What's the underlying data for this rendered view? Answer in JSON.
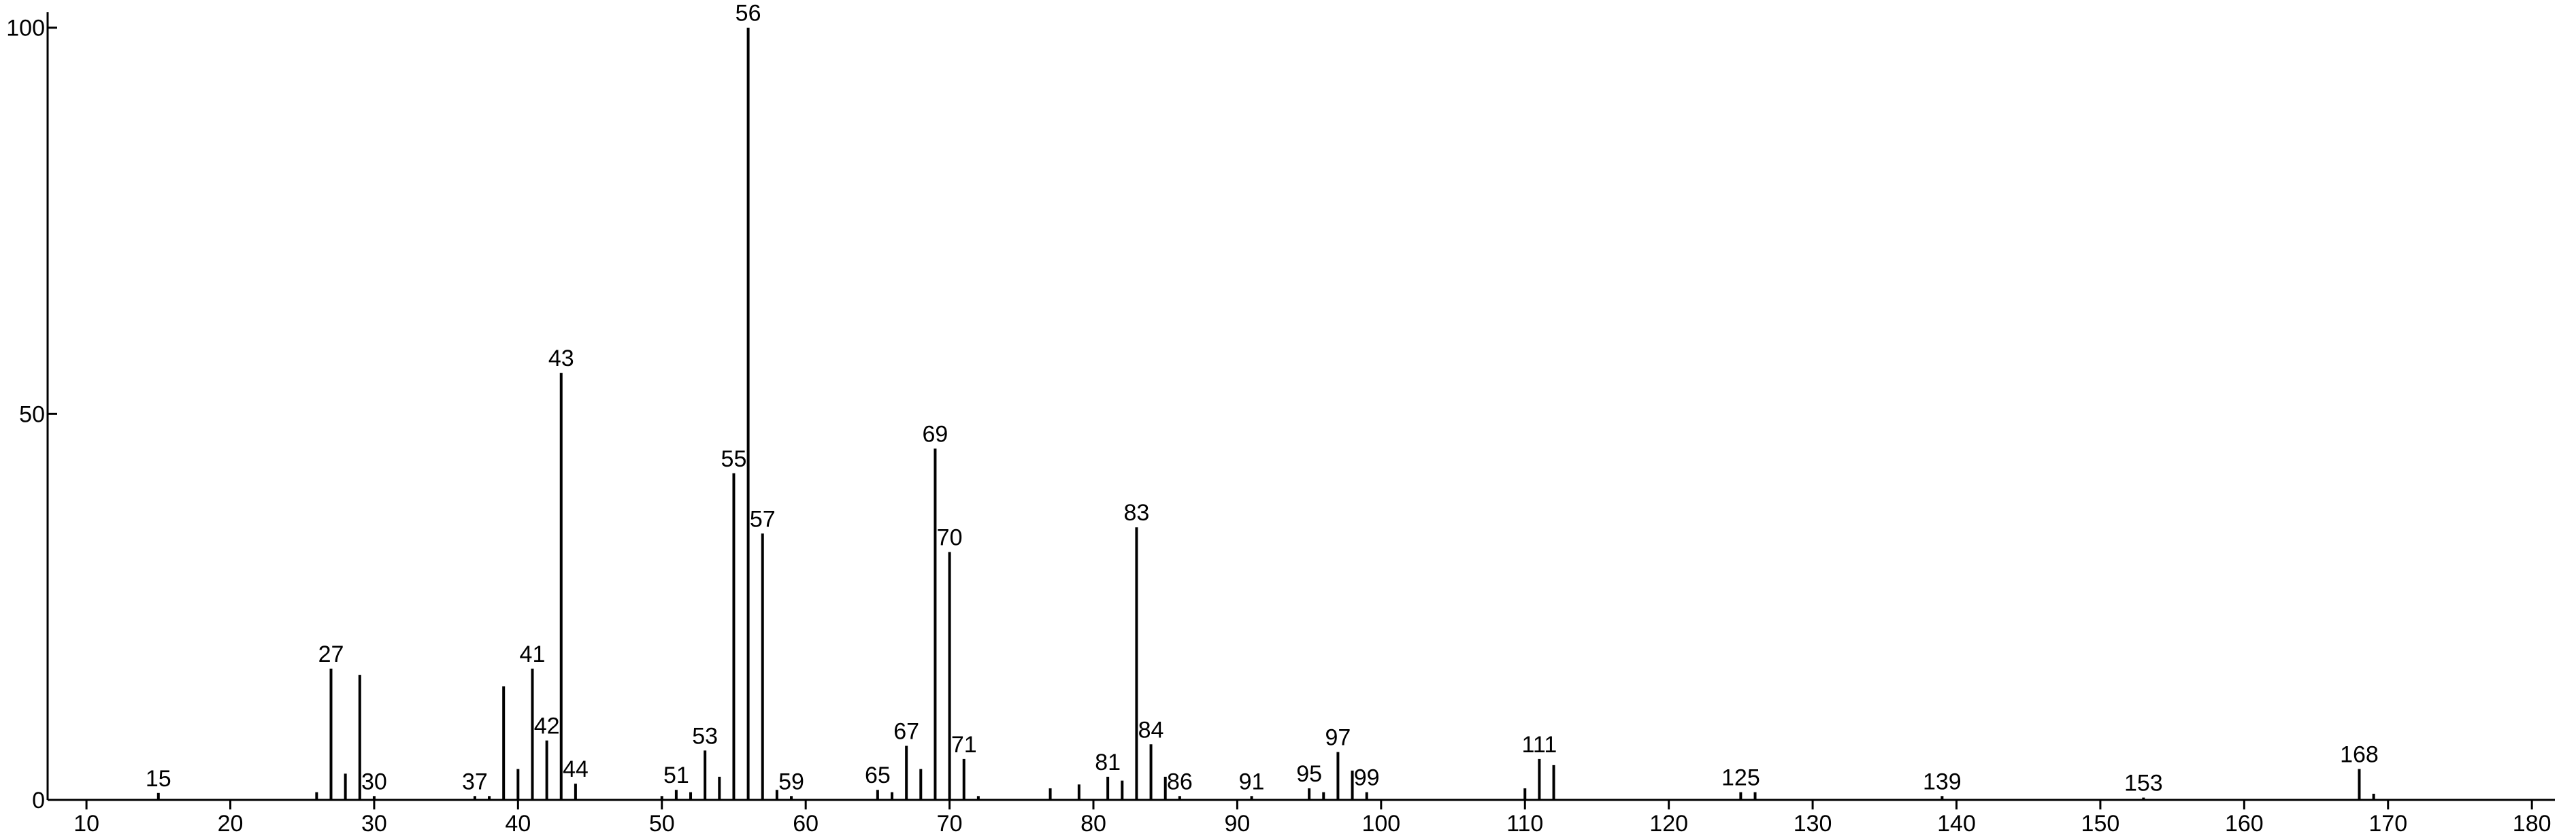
{
  "chart_data": {
    "type": "stick",
    "x": [
      15,
      26,
      27,
      28,
      29,
      30,
      37,
      38,
      39,
      40,
      41,
      42,
      43,
      44,
      50,
      51,
      52,
      53,
      54,
      55,
      56,
      57,
      58,
      59,
      65,
      66,
      67,
      68,
      69,
      70,
      71,
      72,
      77,
      79,
      81,
      82,
      83,
      84,
      85,
      86,
      91,
      95,
      96,
      97,
      98,
      99,
      110,
      111,
      112,
      125,
      126,
      139,
      153,
      168,
      169
    ],
    "values": [
      0.9,
      1,
      17,
      3.4,
      16.2,
      0.5,
      0.5,
      0.5,
      14.7,
      4,
      17,
      7.7,
      55.3,
      2.1,
      0.5,
      1.3,
      1,
      6.4,
      3,
      42.3,
      100,
      34.5,
      1.3,
      0.5,
      1.3,
      1,
      7,
      4,
      45.5,
      32.1,
      5.3,
      0.5,
      1.5,
      2,
      3,
      2.5,
      35.3,
      7.2,
      3,
      0.5,
      0.5,
      1.5,
      1,
      6.2,
      3.8,
      1,
      1.5,
      5.3,
      4.5,
      1,
      1,
      0.5,
      0.3,
      4,
      0.8
    ],
    "peak_labels": [
      "15",
      null,
      "27",
      null,
      null,
      "30",
      "37",
      null,
      null,
      null,
      "41",
      "42",
      "43",
      "44",
      null,
      "51",
      null,
      "53",
      null,
      "55",
      "56",
      "57",
      null,
      "59",
      "65",
      null,
      "67",
      null,
      "69",
      "70",
      "71",
      null,
      null,
      null,
      "81",
      null,
      "83",
      "84",
      null,
      "86",
      "91",
      "95",
      null,
      "97",
      null,
      "99",
      null,
      "111",
      null,
      "125",
      null,
      "139",
      "153",
      "168",
      null
    ],
    "color": "#000000",
    "xlim": [
      7.3,
      181.6
    ],
    "xticks": [
      10,
      20,
      30,
      40,
      50,
      60,
      70,
      80,
      90,
      100,
      110,
      120,
      130,
      140,
      150,
      160,
      170,
      180
    ],
    "ylim": [
      0,
      102
    ],
    "yticks": [
      0,
      50,
      100
    ]
  }
}
